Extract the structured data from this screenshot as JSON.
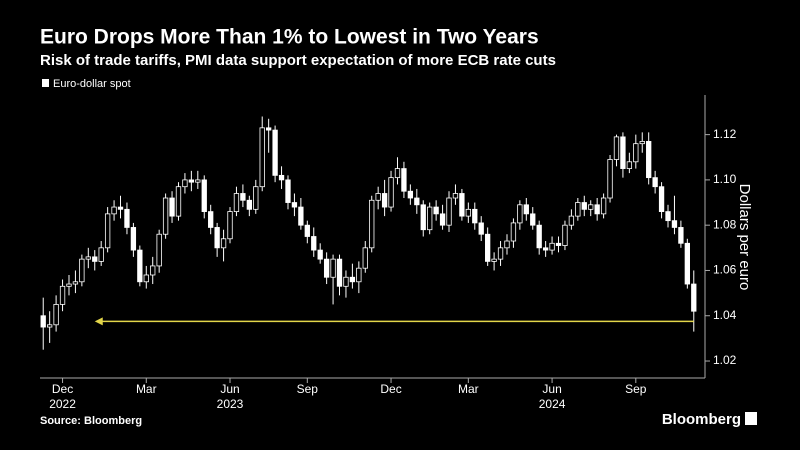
{
  "chart_data": {
    "type": "candlestick",
    "title": "Euro Drops More Than 1% to Lowest in Two Years",
    "subtitle": "Risk of trade tariffs, PMI data support expectation of more ECB rate cuts",
    "legend": "Euro-dollar spot",
    "y_axis_title": "Dollars per euro",
    "source": "Source: Bloomberg",
    "brand": "Bloomberg",
    "color": "#ffffff",
    "up_fill": "#000000",
    "down_fill": "#ffffff",
    "open": [
      1.04,
      1.035,
      1.036,
      1.045,
      1.053,
      1.054,
      1.055,
      1.065,
      1.066,
      1.064,
      1.07,
      1.085,
      1.088,
      1.087,
      1.079,
      1.069,
      1.055,
      1.058,
      1.062,
      1.076,
      1.092,
      1.084,
      1.097,
      1.1,
      1.099,
      1.1,
      1.086,
      1.079,
      1.07,
      1.074,
      1.086,
      1.094,
      1.091,
      1.087,
      1.097,
      1.123,
      1.122,
      1.102,
      1.1,
      1.09,
      1.088,
      1.08,
      1.075,
      1.069,
      1.065,
      1.057,
      1.065,
      1.053,
      1.057,
      1.055,
      1.061,
      1.07,
      1.091,
      1.094,
      1.088,
      1.101,
      1.105,
      1.095,
      1.092,
      1.089,
      1.078,
      1.088,
      1.085,
      1.08,
      1.092,
      1.094,
      1.084,
      1.087,
      1.081,
      1.076,
      1.064,
      1.065,
      1.07,
      1.073,
      1.081,
      1.089,
      1.085,
      1.08,
      1.07,
      1.069,
      1.072,
      1.071,
      1.08,
      1.084,
      1.09,
      1.087,
      1.089,
      1.085,
      1.092,
      1.109,
      1.119,
      1.105,
      1.108,
      1.116,
      1.117,
      1.101,
      1.097,
      1.086,
      1.082,
      1.079,
      1.072,
      1.054
    ],
    "high": [
      1.048,
      1.042,
      1.049,
      1.056,
      1.058,
      1.06,
      1.067,
      1.07,
      1.069,
      1.073,
      1.088,
      1.091,
      1.093,
      1.09,
      1.081,
      1.071,
      1.062,
      1.066,
      1.078,
      1.094,
      1.095,
      1.099,
      1.103,
      1.104,
      1.104,
      1.102,
      1.089,
      1.081,
      1.078,
      1.088,
      1.097,
      1.098,
      1.093,
      1.1,
      1.128,
      1.127,
      1.124,
      1.106,
      1.102,
      1.094,
      1.092,
      1.082,
      1.079,
      1.072,
      1.068,
      1.067,
      1.067,
      1.06,
      1.063,
      1.064,
      1.073,
      1.093,
      1.097,
      1.1,
      1.104,
      1.11,
      1.108,
      1.098,
      1.096,
      1.091,
      1.09,
      1.091,
      1.089,
      1.095,
      1.098,
      1.096,
      1.09,
      1.09,
      1.084,
      1.079,
      1.068,
      1.073,
      1.076,
      1.083,
      1.091,
      1.092,
      1.088,
      1.082,
      1.073,
      1.075,
      1.075,
      1.082,
      1.087,
      1.092,
      1.093,
      1.091,
      1.092,
      1.094,
      1.111,
      1.12,
      1.121,
      1.112,
      1.12,
      1.121,
      1.121,
      1.104,
      1.099,
      1.089,
      1.093,
      1.082,
      1.074,
      1.06
    ],
    "low": [
      1.025,
      1.028,
      1.033,
      1.042,
      1.049,
      1.05,
      1.053,
      1.061,
      1.06,
      1.062,
      1.068,
      1.082,
      1.083,
      1.076,
      1.066,
      1.053,
      1.052,
      1.054,
      1.059,
      1.074,
      1.081,
      1.082,
      1.094,
      1.095,
      1.096,
      1.083,
      1.076,
      1.066,
      1.064,
      1.072,
      1.084,
      1.088,
      1.084,
      1.085,
      1.095,
      1.112,
      1.099,
      1.096,
      1.087,
      1.084,
      1.078,
      1.072,
      1.066,
      1.063,
      1.054,
      1.045,
      1.049,
      1.048,
      1.052,
      1.05,
      1.059,
      1.068,
      1.087,
      1.084,
      1.086,
      1.098,
      1.092,
      1.089,
      1.085,
      1.075,
      1.076,
      1.082,
      1.078,
      1.077,
      1.089,
      1.082,
      1.081,
      1.078,
      1.073,
      1.062,
      1.06,
      1.062,
      1.067,
      1.07,
      1.078,
      1.082,
      1.078,
      1.067,
      1.066,
      1.067,
      1.068,
      1.069,
      1.078,
      1.082,
      1.084,
      1.084,
      1.082,
      1.083,
      1.09,
      1.106,
      1.101,
      1.103,
      1.105,
      1.112,
      1.098,
      1.094,
      1.083,
      1.079,
      1.076,
      1.07,
      1.052,
      1.033
    ],
    "close": [
      1.035,
      1.036,
      1.045,
      1.053,
      1.054,
      1.055,
      1.065,
      1.066,
      1.064,
      1.07,
      1.085,
      1.088,
      1.087,
      1.079,
      1.069,
      1.055,
      1.058,
      1.062,
      1.076,
      1.092,
      1.084,
      1.097,
      1.1,
      1.099,
      1.1,
      1.086,
      1.079,
      1.07,
      1.074,
      1.086,
      1.094,
      1.091,
      1.087,
      1.097,
      1.123,
      1.122,
      1.102,
      1.1,
      1.09,
      1.088,
      1.08,
      1.075,
      1.069,
      1.065,
      1.057,
      1.065,
      1.053,
      1.057,
      1.055,
      1.061,
      1.07,
      1.091,
      1.094,
      1.088,
      1.101,
      1.105,
      1.095,
      1.092,
      1.089,
      1.078,
      1.088,
      1.085,
      1.08,
      1.092,
      1.094,
      1.084,
      1.087,
      1.081,
      1.076,
      1.064,
      1.065,
      1.07,
      1.073,
      1.081,
      1.089,
      1.085,
      1.08,
      1.07,
      1.069,
      1.072,
      1.071,
      1.08,
      1.084,
      1.09,
      1.087,
      1.089,
      1.085,
      1.092,
      1.109,
      1.119,
      1.105,
      1.108,
      1.116,
      1.117,
      1.101,
      1.097,
      1.086,
      1.082,
      1.079,
      1.072,
      1.054,
      1.042
    ],
    "xticks": [
      {
        "value": 3,
        "label": "Dec"
      },
      {
        "value": 16,
        "label": "Mar"
      },
      {
        "value": 29,
        "label": "Jun"
      },
      {
        "value": 41,
        "label": "Sep"
      },
      {
        "value": 54,
        "label": "Dec"
      },
      {
        "value": 66,
        "label": "Mar"
      },
      {
        "value": 79,
        "label": "Jun"
      },
      {
        "value": 92,
        "label": "Sep"
      }
    ],
    "xyears": [
      {
        "value": 3,
        "label": "2022"
      },
      {
        "value": 29,
        "label": "2023"
      },
      {
        "value": 79,
        "label": "2024"
      }
    ],
    "ylim": [
      1.0125,
      1.1375
    ],
    "yticks": [
      1.02,
      1.04,
      1.06,
      1.08,
      {
        "value": 1.1,
        "label": "1.10"
      },
      1.12
    ],
    "arrow": {
      "y": 1.0375,
      "from": 101,
      "to": 8,
      "color": "#e3d64a"
    }
  }
}
